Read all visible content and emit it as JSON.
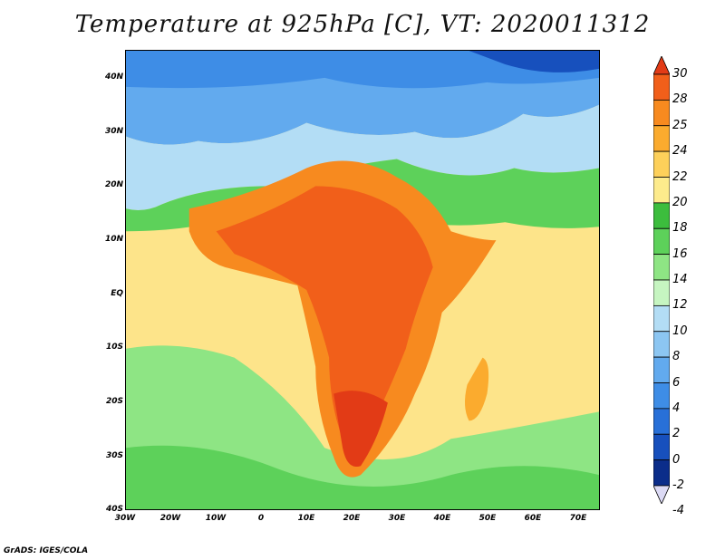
{
  "title": "Temperature at 925hPa [C], VT: 2020011312",
  "credit": "GrADS: IGES/COLA",
  "lat_ticks": [
    "40N",
    "30N",
    "20N",
    "10N",
    "EQ",
    "10S",
    "20S",
    "30S",
    "40S"
  ],
  "lon_ticks": [
    "30W",
    "20W",
    "10W",
    "0",
    "10E",
    "20E",
    "30E",
    "40E",
    "50E",
    "60E",
    "70E"
  ],
  "colorbar": {
    "labels": [
      "30",
      "28",
      "25",
      "24",
      "22",
      "20",
      "18",
      "16",
      "14",
      "12",
      "10",
      "8",
      "6",
      "4",
      "2",
      "0",
      "-2",
      "-4"
    ],
    "colors": [
      "#e23b16",
      "#f15f1a",
      "#f78a1f",
      "#fbab2e",
      "#fdd05a",
      "#fdeb8c",
      "#3cbd3d",
      "#5dd15a",
      "#8ee584",
      "#c6f5c1",
      "#b3ddf5",
      "#8cc6f2",
      "#62aaee",
      "#3e8de6",
      "#2870d8",
      "#1750bd",
      "#0b2d8a",
      "#dcdaf5"
    ]
  }
}
